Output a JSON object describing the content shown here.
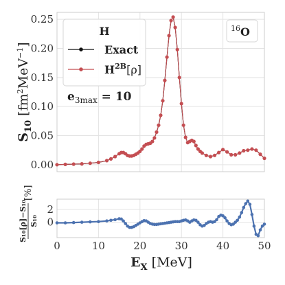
{
  "chart_data": [
    {
      "type": "line",
      "panel": "top",
      "xlim": [
        0,
        50
      ],
      "ylim": [
        -0.012,
        0.262
      ],
      "yticks": [
        "0.00",
        "0.05",
        "0.10",
        "0.15",
        "0.20",
        "0.25"
      ],
      "ytick_values": [
        0,
        0.05,
        0.1,
        0.15,
        0.2,
        0.25
      ],
      "ylabel": {
        "main": "S",
        "sub": "10",
        "unit": " [fm",
        "unit_sup": "2",
        "unit2": "MeV",
        "unit2_sup": "−1",
        "close": "]"
      },
      "grid": true,
      "legend": {
        "position": "top-left",
        "title": "H",
        "entries": [
          {
            "name": "Exact",
            "color": "#111111"
          },
          {
            "name": "H",
            "sup": "2B",
            "suffix": "[ρ]",
            "color": "#c44e52"
          }
        ]
      },
      "annotation": {
        "pre": "e",
        "sub": "3max",
        "post": " = 10"
      },
      "nucleus_label": {
        "sup": "16",
        "text": "O"
      },
      "series": [
        {
          "name": "Exact",
          "color": "#111111",
          "x": [
            0,
            2,
            4,
            6,
            8,
            10,
            12,
            13,
            14,
            15,
            15.5,
            16,
            16.5,
            17,
            17.5,
            18,
            18.5,
            19,
            19.5,
            20,
            20.5,
            21,
            21.5,
            22,
            22.5,
            23,
            23.5,
            24,
            24.5,
            25,
            25.5,
            26,
            26.5,
            27,
            27.5,
            28,
            28.5,
            29,
            29.5,
            30,
            30.5,
            31,
            31.5,
            32,
            32.5,
            33,
            33.5,
            34,
            34.5,
            35,
            36,
            37,
            38,
            39,
            40,
            41,
            42,
            43,
            44,
            45,
            46,
            47,
            48,
            49,
            50
          ],
          "y": [
            0.0,
            0.0005,
            0.001,
            0.0015,
            0.0025,
            0.004,
            0.007,
            0.01,
            0.014,
            0.019,
            0.021,
            0.021,
            0.019,
            0.016,
            0.015,
            0.015,
            0.016,
            0.018,
            0.02,
            0.023,
            0.027,
            0.032,
            0.035,
            0.036,
            0.037,
            0.04,
            0.046,
            0.056,
            0.068,
            0.085,
            0.11,
            0.145,
            0.185,
            0.222,
            0.248,
            0.254,
            0.236,
            0.198,
            0.15,
            0.105,
            0.068,
            0.047,
            0.038,
            0.04,
            0.042,
            0.04,
            0.033,
            0.027,
            0.023,
            0.02,
            0.016,
            0.014,
            0.016,
            0.021,
            0.026,
            0.022,
            0.017,
            0.017,
            0.02,
            0.024,
            0.025,
            0.027,
            0.025,
            0.018,
            0.011
          ]
        },
        {
          "name": "H2B[ρ]",
          "color": "#c44e52",
          "x": [
            0,
            2,
            4,
            6,
            8,
            10,
            12,
            13,
            14,
            15,
            15.5,
            16,
            16.5,
            17,
            17.5,
            18,
            18.5,
            19,
            19.5,
            20,
            20.5,
            21,
            21.5,
            22,
            22.5,
            23,
            23.5,
            24,
            24.5,
            25,
            25.5,
            26,
            26.5,
            27,
            27.5,
            28,
            28.5,
            29,
            29.5,
            30,
            30.5,
            31,
            31.5,
            32,
            32.5,
            33,
            33.5,
            34,
            34.5,
            35,
            36,
            37,
            38,
            39,
            40,
            41,
            42,
            43,
            44,
            45,
            46,
            47,
            48,
            49,
            50
          ],
          "y": [
            0.0,
            0.0005,
            0.001,
            0.0015,
            0.0025,
            0.004,
            0.007,
            0.01,
            0.014,
            0.019,
            0.021,
            0.021,
            0.019,
            0.016,
            0.015,
            0.015,
            0.016,
            0.018,
            0.02,
            0.023,
            0.027,
            0.032,
            0.035,
            0.036,
            0.037,
            0.04,
            0.046,
            0.056,
            0.068,
            0.085,
            0.11,
            0.145,
            0.185,
            0.222,
            0.248,
            0.254,
            0.236,
            0.198,
            0.15,
            0.105,
            0.068,
            0.047,
            0.038,
            0.04,
            0.042,
            0.04,
            0.033,
            0.027,
            0.023,
            0.02,
            0.016,
            0.014,
            0.016,
            0.021,
            0.026,
            0.022,
            0.017,
            0.017,
            0.02,
            0.024,
            0.025,
            0.027,
            0.025,
            0.018,
            0.011
          ]
        }
      ]
    },
    {
      "type": "scatter",
      "panel": "bottom",
      "xlim": [
        0,
        50
      ],
      "ylim": [
        -2.4,
        3.6
      ],
      "xticks": [
        "0",
        "10",
        "20",
        "30",
        "40",
        "50"
      ],
      "xtick_values": [
        0,
        10,
        20,
        30,
        40,
        50
      ],
      "yticks": [
        "0",
        "2"
      ],
      "ytick_values": [
        0,
        2
      ],
      "xlabel": {
        "main": "E",
        "sub": "X",
        "unit": " [MeV]"
      },
      "ylabel": {
        "num": "S₁₀[ρ]−S₁₀",
        "pct": "[%]",
        "den": "S₁₀"
      },
      "grid": true,
      "series": [
        {
          "name": "",
          "color": "#4c72b0",
          "x": [
            0,
            2,
            4,
            6,
            8,
            10,
            12,
            13,
            14,
            15,
            15.5,
            16,
            16.5,
            17,
            17.5,
            18,
            18.5,
            19,
            19.5,
            20,
            20.5,
            21,
            21.5,
            22,
            22.5,
            23,
            23.5,
            24,
            24.5,
            25,
            25.5,
            26,
            26.5,
            27,
            27.5,
            28,
            28.5,
            29,
            29.5,
            30,
            30.5,
            31,
            31.5,
            32,
            32.5,
            33,
            33.5,
            34,
            34.5,
            35,
            35.5,
            36,
            36.5,
            37,
            37.5,
            38,
            38.5,
            39,
            39.5,
            40,
            40.5,
            41,
            41.5,
            42,
            42.5,
            43,
            43.5,
            44,
            44.5,
            45,
            45.5,
            46,
            46.5,
            47,
            47.5,
            48,
            48.5,
            49,
            49.5,
            50
          ],
          "y": [
            -0.1,
            -0.1,
            -0.05,
            0.0,
            0.05,
            0.1,
            0.2,
            0.3,
            0.4,
            0.55,
            0.5,
            0.2,
            -0.2,
            -0.6,
            -0.8,
            -0.8,
            -0.7,
            -0.5,
            -0.3,
            -0.1,
            0.1,
            0.25,
            0.2,
            0.0,
            -0.2,
            -0.3,
            -0.35,
            -0.35,
            -0.3,
            -0.25,
            -0.2,
            -0.15,
            -0.1,
            -0.05,
            0.0,
            0.05,
            0.1,
            0.1,
            0.1,
            0.2,
            0.3,
            0.35,
            0.2,
            0.0,
            0.2,
            0.35,
            0.3,
            0.0,
            -0.4,
            -0.6,
            -0.5,
            -0.2,
            0.0,
            0.1,
            0.0,
            0.1,
            0.4,
            0.9,
            1.1,
            1.0,
            0.7,
            0.2,
            -0.2,
            -0.4,
            -0.3,
            0.0,
            0.3,
            0.8,
            1.5,
            2.3,
            2.9,
            3.3,
            2.8,
            1.2,
            -0.6,
            -1.9,
            -2.1,
            -1.2,
            -0.6,
            -0.3
          ]
        }
      ]
    }
  ]
}
